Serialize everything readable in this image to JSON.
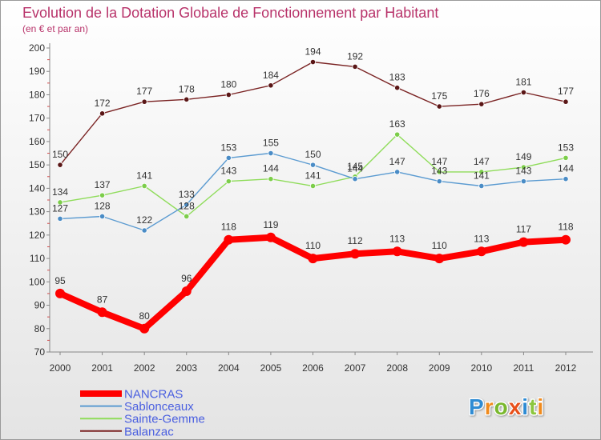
{
  "chart_data": {
    "type": "line",
    "title": "Evolution de la Dotation Globale de Fonctionnement par Habitant",
    "subtitle": "(en € et par an)",
    "x": [
      2000,
      2001,
      2002,
      2003,
      2004,
      2005,
      2006,
      2007,
      2008,
      2009,
      2010,
      2011,
      2012
    ],
    "ylim": [
      70,
      200
    ],
    "yticks": [
      70,
      80,
      90,
      100,
      110,
      120,
      130,
      140,
      150,
      160,
      170,
      180,
      190,
      200
    ],
    "grid": false,
    "legend": "bottom-left",
    "series": [
      {
        "name": "NANCRAS",
        "values": [
          95,
          87,
          80,
          96,
          118,
          119,
          110,
          112,
          113,
          110,
          113,
          117,
          118
        ],
        "color": "#ff0000",
        "marker": "#ff0000"
      },
      {
        "name": "Sablonceaux",
        "values": [
          127,
          128,
          122,
          133,
          153,
          155,
          150,
          144,
          147,
          143,
          141,
          143,
          144
        ],
        "color": "#5b9bd1",
        "marker": "#4a8cc6"
      },
      {
        "name": "Sainte-Gemme",
        "values": [
          134,
          137,
          141,
          128,
          143,
          144,
          141,
          145,
          163,
          147,
          147,
          149,
          153
        ],
        "color": "#8fdc5a",
        "marker": "#7ccd4a"
      },
      {
        "name": "Balanzac",
        "values": [
          150,
          172,
          177,
          178,
          180,
          184,
          194,
          192,
          183,
          175,
          176,
          181,
          177
        ],
        "color": "#7a2323",
        "marker": "#5a1616"
      }
    ]
  },
  "colors": {
    "title": "#b8336a",
    "legend_text": "#4a5fe0",
    "axis": "#888888",
    "minor_tick": "#d04a4a"
  },
  "logo": {
    "text": "Proxiti",
    "letter_colors": [
      "#2e8bd3",
      "#f08a1c",
      "#7ab82e",
      "#e8501a",
      "#2e8bd3",
      "#8cc63e",
      "#f08a1c"
    ]
  }
}
